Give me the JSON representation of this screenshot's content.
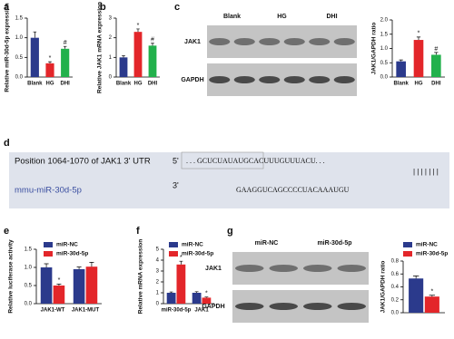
{
  "chart_data": [
    {
      "type": "bar",
      "panel_label": "a",
      "ylabel": "Relative miR-30d-5p expression",
      "categories": [
        "Blank",
        "HG",
        "DHI"
      ],
      "values": [
        1.0,
        0.35,
        0.72
      ],
      "errors": [
        0.15,
        0.04,
        0.06
      ],
      "colors": [
        "#2b3a8c",
        "#e3262a",
        "#22b14c"
      ],
      "annotations": [
        null,
        "*",
        "#"
      ],
      "ylim": [
        0,
        1.5
      ],
      "yticks": [
        {
          "value": 0,
          "label": "0.0"
        },
        0.5,
        {
          "value": 1,
          "label": "1.0"
        },
        1.5
      ]
    },
    {
      "type": "bar",
      "panel_label": "b",
      "ylabel": "Relative JAK1 mRNA expression",
      "categories": [
        "Blank",
        "HG",
        "DHI"
      ],
      "values": [
        1.0,
        2.3,
        1.6
      ],
      "errors": [
        0.08,
        0.15,
        0.12
      ],
      "colors": [
        "#2b3a8c",
        "#e3262a",
        "#22b14c"
      ],
      "annotations": [
        null,
        "*",
        "#"
      ],
      "ylim": [
        0,
        3
      ],
      "yticks": [
        0,
        1,
        2,
        3
      ]
    },
    {
      "type": "bar",
      "ylabel": "JAK1/GAPDH ratio",
      "categories": [
        "Blank",
        "HG",
        "DHI"
      ],
      "values": [
        0.55,
        1.3,
        0.78
      ],
      "errors": [
        0.05,
        0.1,
        0.08
      ],
      "colors": [
        "#2b3a8c",
        "#e3262a",
        "#22b14c"
      ],
      "annotations": [
        null,
        "*",
        "#"
      ],
      "ylim": [
        0,
        2
      ],
      "yticks": [
        {
          "value": 0,
          "label": "0.0"
        },
        0.5,
        {
          "value": 1,
          "label": "1.0"
        },
        1.5,
        {
          "value": 2,
          "label": "2.0"
        }
      ]
    },
    {
      "type": "bar",
      "panel_label": "e",
      "ylabel": "Relative luciferase activity",
      "categories": [
        "JAK1-WT",
        "JAK1-MUT"
      ],
      "series": [
        {
          "name": "miR-NC",
          "color": "#2b3a8c",
          "values": [
            1.0,
            0.95
          ],
          "errors": [
            0.1,
            0.06
          ]
        },
        {
          "name": "miR-30d-5p",
          "color": "#e3262a",
          "values": [
            0.5,
            1.02
          ],
          "errors": [
            0.04,
            0.12
          ],
          "annotations": [
            "*",
            null
          ]
        }
      ],
      "ylim": [
        0,
        1.5
      ],
      "yticks": [
        {
          "value": 0,
          "label": "0.0"
        },
        0.5,
        {
          "value": 1,
          "label": "1.0"
        },
        1.5
      ]
    },
    {
      "type": "bar",
      "panel_label": "f",
      "ylabel": "Relative mRNA expression",
      "categories": [
        "miR-30d-5p",
        "JAK1"
      ],
      "series": [
        {
          "name": "miR-NC",
          "color": "#2b3a8c",
          "values": [
            1.0,
            1.0
          ],
          "errors": [
            0.08,
            0.1
          ]
        },
        {
          "name": "miR-30d-5p",
          "color": "#e3262a",
          "values": [
            3.6,
            0.55
          ],
          "errors": [
            0.3,
            0.06
          ],
          "annotations": [
            "*",
            "*"
          ]
        }
      ],
      "ylim": [
        0,
        5
      ],
      "yticks": [
        0,
        1,
        2,
        3,
        4,
        5
      ]
    },
    {
      "type": "bar",
      "ylabel": "JAK1/GAPDH ratio",
      "categories": [
        null
      ],
      "series": [
        {
          "name": "miR-NC",
          "color": "#2b3a8c",
          "values": [
            0.53
          ],
          "errors": [
            0.04
          ]
        },
        {
          "name": "miR-30d-5p",
          "color": "#e3262a",
          "values": [
            0.25
          ],
          "errors": [
            0.02
          ],
          "annotations": [
            "*"
          ]
        }
      ],
      "ylim": [
        0,
        0.8
      ],
      "yticks": [
        {
          "value": 0,
          "label": "0.0"
        },
        0.2,
        0.4,
        0.6,
        0.8
      ]
    }
  ],
  "blots": [
    {
      "panel_label": "c",
      "lanes": [
        "Blank",
        "HG",
        "DHI"
      ],
      "rows": [
        "JAK1",
        "GAPDH"
      ]
    },
    {
      "panel_label": "g",
      "lanes": [
        "miR-NC",
        "miR-30d-5p"
      ],
      "rows": [
        "JAK1",
        "GAPDH"
      ]
    }
  ],
  "sequence": {
    "panel_label": "d",
    "target_label": "Position 1064-1070 of JAK1 3' UTR",
    "target_end": "5'",
    "target_seq": ". . . GCUCUAUAUGCACUUUGUUUACU. . .",
    "pairing": "| | | | | | |",
    "mirna_label": "mmu-miR-30d-5p",
    "mirna_end": "3'",
    "mirna_seq": "GAAGGUCAGCCCCUACAAAUGU"
  }
}
